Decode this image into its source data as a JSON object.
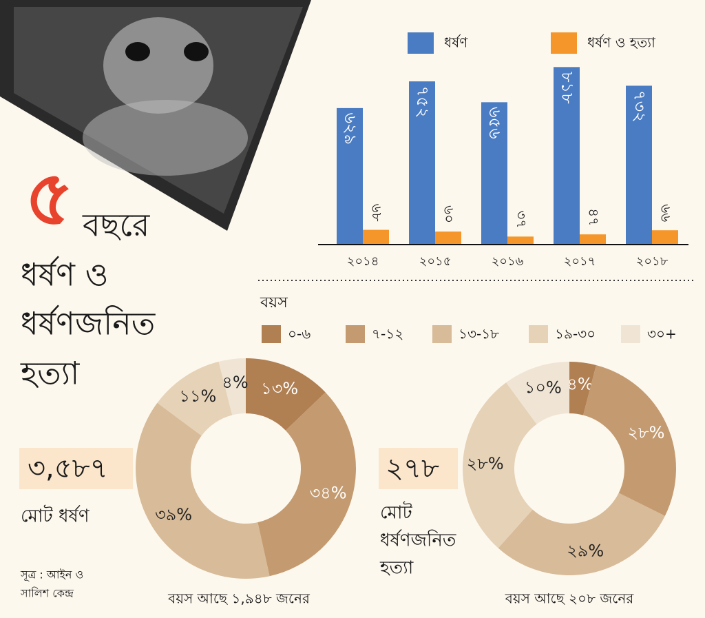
{
  "chart_data": [
    {
      "type": "bar",
      "categories": [
        "২০১৪",
        "২০১৫",
        "২০১৬",
        "২০১৭",
        "২০১৮"
      ],
      "series": [
        {
          "name": "ধর্ষণ",
          "color": "#4a7cc3",
          "values": [
            629,
            752,
            656,
            818,
            732
          ],
          "value_labels": [
            "৬২৯",
            "৭৫২",
            "৬৫৬",
            "৮১৮",
            "৭৩২"
          ]
        },
        {
          "name": "ধর্ষণ ও হত্যা",
          "color": "#f4962a",
          "values": [
            68,
            60,
            37,
            47,
            66
          ],
          "value_labels": [
            "৬৮",
            "৬০",
            "৩৭",
            "৪৭",
            "৬৬"
          ]
        }
      ]
    },
    {
      "type": "pie",
      "values": [
        13,
        34,
        39,
        11,
        4
      ],
      "value_labels": [
        "১৩%",
        "৩৪%",
        "৩৯%",
        "১১%",
        "৪%"
      ],
      "note": "বয়স আছে ১,৯৪৮ জনের"
    },
    {
      "type": "pie",
      "values": [
        4,
        28,
        29,
        28,
        10
      ],
      "value_labels": [
        "৪%",
        "২৮%",
        "২৯%",
        "২৮%",
        "১০%"
      ],
      "note": "বয়স আছে ২০৮ জনের"
    }
  ],
  "age_legend": {
    "title": "বয়স",
    "categories": [
      "০-৬",
      "৭-১২",
      "১৩-১৮",
      "১৯-৩০",
      "৩০+"
    ],
    "colors": [
      "#b07f52",
      "#c49b70",
      "#d8bb98",
      "#e6d2b7",
      "#f0e5d4"
    ]
  },
  "headline": {
    "number": "৫",
    "lines": [
      "বছরে",
      "ধর্ষণ ও",
      "ধর্ষণজনিত",
      "হত্যা"
    ]
  },
  "total_rape": {
    "value": "৩,৫৮৭",
    "label": "মোট ধর্ষণ"
  },
  "total_murder": {
    "value": "২৭৮",
    "label_lines": [
      "মোট",
      "ধর্ষণজনিত",
      "হত্যা"
    ]
  },
  "source_lines": [
    "সূত্র : আইন ও",
    "সালিশ কেন্দ্র"
  ]
}
